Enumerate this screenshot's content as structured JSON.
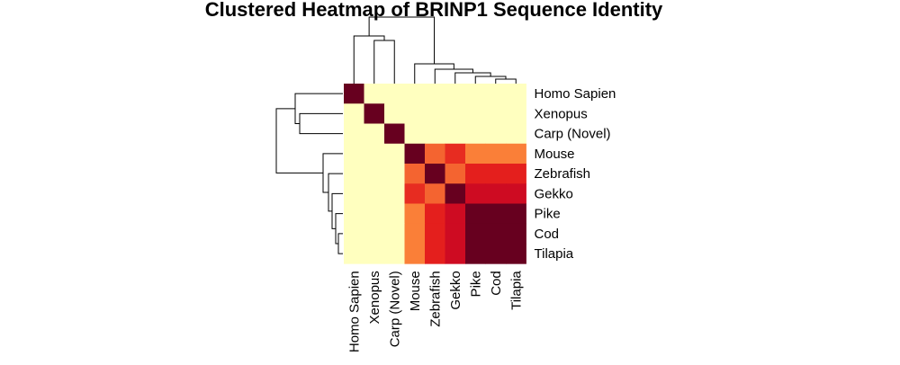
{
  "chart_data": {
    "type": "heatmap",
    "title": "Clustered Heatmap of BRINP1 Sequence Identity",
    "labels": [
      "Homo Sapien",
      "Xenopus",
      "Carp (Novel)",
      "Mouse",
      "Zebrafish",
      "Gekko",
      "Pike",
      "Cod",
      "Tilapia"
    ],
    "values": [
      [
        1.0,
        0.1,
        0.1,
        0.1,
        0.1,
        0.1,
        0.1,
        0.1,
        0.1
      ],
      [
        0.1,
        1.0,
        0.1,
        0.1,
        0.1,
        0.1,
        0.1,
        0.1,
        0.1
      ],
      [
        0.1,
        0.1,
        1.0,
        0.1,
        0.1,
        0.1,
        0.1,
        0.1,
        0.1
      ],
      [
        0.1,
        0.1,
        0.1,
        1.0,
        0.78,
        0.82,
        0.76,
        0.76,
        0.76
      ],
      [
        0.1,
        0.1,
        0.1,
        0.78,
        1.0,
        0.78,
        0.83,
        0.83,
        0.83
      ],
      [
        0.1,
        0.1,
        0.1,
        0.82,
        0.78,
        1.0,
        0.88,
        0.88,
        0.88
      ],
      [
        0.1,
        0.1,
        0.1,
        0.76,
        0.83,
        0.88,
        1.0,
        1.0,
        1.0
      ],
      [
        0.1,
        0.1,
        0.1,
        0.76,
        0.83,
        0.88,
        1.0,
        1.0,
        1.0
      ],
      [
        0.1,
        0.1,
        0.1,
        0.76,
        0.83,
        0.88,
        1.0,
        1.0,
        1.0
      ]
    ],
    "color_scale": [
      "#FFFFBF",
      "#FED976",
      "#FD8D3C",
      "#E31A1C",
      "#BD0026",
      "#67001F"
    ],
    "legend": "none",
    "dendrograms": [
      "top",
      "left"
    ]
  }
}
